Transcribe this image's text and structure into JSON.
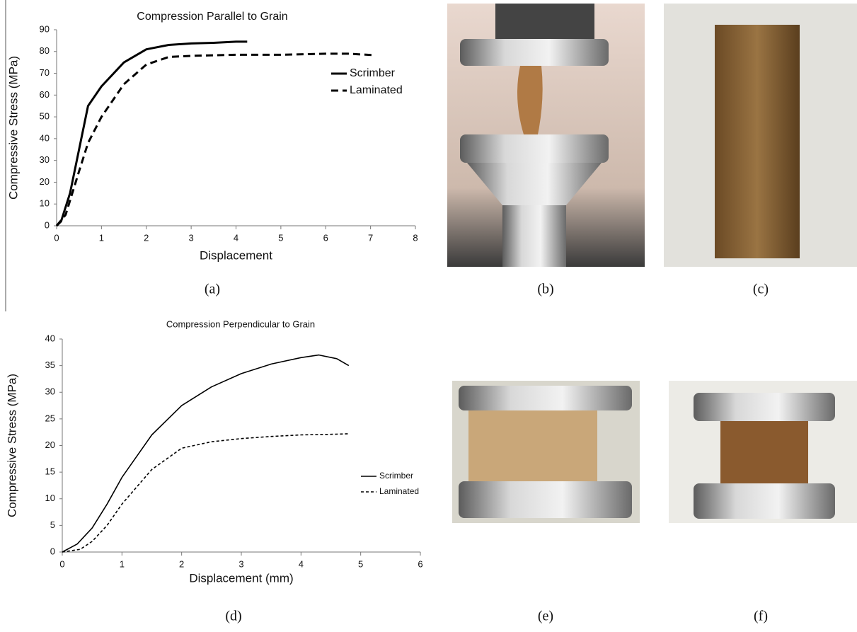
{
  "chart_data": [
    {
      "type": "line",
      "title": "Compression Parallel to Grain",
      "x_label": "Displacement",
      "y_label": "Compressive Stress (MPa)",
      "xlim": [
        0,
        8
      ],
      "xticks": [
        0,
        1,
        2,
        3,
        4,
        5,
        6,
        7,
        8
      ],
      "ylim": [
        0,
        90
      ],
      "yticks": [
        0,
        10,
        20,
        30,
        40,
        50,
        60,
        70,
        80,
        90
      ],
      "legend": "right",
      "grid": false,
      "series": [
        {
          "name": "Scrimber",
          "color": "#000000",
          "style": "solid",
          "x": [
            0,
            0.1,
            0.3,
            0.5,
            0.7,
            1,
            1.5,
            2,
            2.5,
            3,
            3.5,
            4,
            4.25
          ],
          "values": [
            0,
            2,
            15,
            35,
            55,
            64,
            75,
            81,
            83,
            83.7,
            84,
            84.5,
            84.5
          ]
        },
        {
          "name": "Laminated",
          "color": "#000000",
          "style": "dashed",
          "x": [
            0,
            0.2,
            0.5,
            0.7,
            1,
            1.5,
            2,
            2.5,
            3,
            4,
            5,
            6,
            6.5,
            7.1
          ],
          "values": [
            0,
            5,
            25,
            38,
            50,
            65,
            74,
            77.5,
            78,
            78.5,
            78.5,
            79,
            79,
            78.3
          ]
        }
      ]
    },
    {
      "type": "line",
      "title": "Compression Perpendicular to Grain",
      "x_label": "Displacement (mm)",
      "y_label": "Compressive Stress (MPa)",
      "xlim": [
        0,
        6
      ],
      "xticks": [
        0,
        1,
        2,
        3,
        4,
        5,
        6
      ],
      "ylim": [
        0,
        40
      ],
      "yticks": [
        0,
        5,
        10,
        15,
        20,
        25,
        30,
        35,
        40
      ],
      "legend": "right",
      "grid": false,
      "series": [
        {
          "name": "Scrimber",
          "color": "#000000",
          "style": "solid",
          "x": [
            0,
            0.25,
            0.5,
            0.75,
            1,
            1.5,
            2,
            2.5,
            3,
            3.5,
            4,
            4.3,
            4.6,
            4.8
          ],
          "values": [
            0,
            1.5,
            4.5,
            9,
            14,
            22,
            27.5,
            31,
            33.5,
            35.3,
            36.5,
            37,
            36.3,
            35
          ]
        },
        {
          "name": "Laminated",
          "color": "#000000",
          "style": "dashed",
          "x": [
            0,
            0.3,
            0.5,
            0.75,
            1,
            1.5,
            2,
            2.5,
            3,
            3.5,
            4,
            4.5,
            4.8
          ],
          "values": [
            0,
            0.5,
            2,
            5,
            9,
            15.5,
            19.5,
            20.7,
            21.3,
            21.7,
            22,
            22.1,
            22.2
          ]
        }
      ]
    }
  ],
  "captions": [
    "(a)",
    "(b)",
    "(c)",
    "(d)",
    "(e)",
    "(f)"
  ]
}
